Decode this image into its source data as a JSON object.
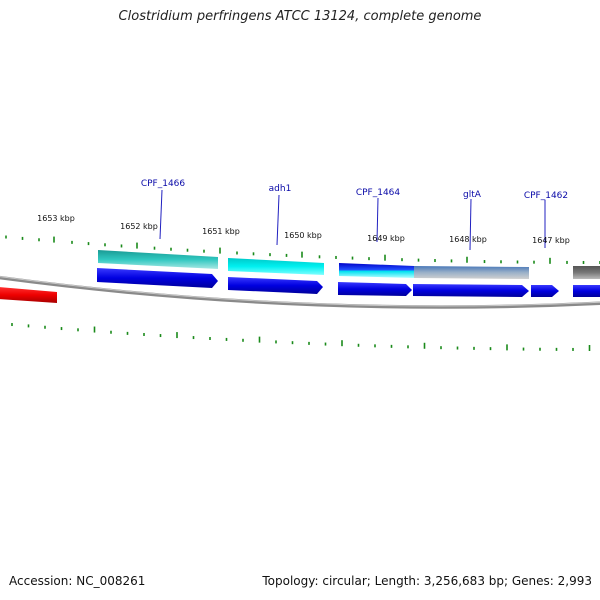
{
  "title": "Clostridium perfringens ATCC 13124, complete genome",
  "footer": {
    "accession": "Accession: NC_008261",
    "summary": "Topology: circular; Length: 3,256,683 bp; Genes: 2,993"
  },
  "axis": {
    "kbp_labels": [
      "1653 kbp",
      "1652 kbp",
      "1651 kbp",
      "1650 kbp",
      "1649 kbp",
      "1648 kbp",
      "1647 kbp"
    ]
  },
  "genes": [
    {
      "name": "CPF_1466"
    },
    {
      "name": "adh1"
    },
    {
      "name": "CPF_1464"
    },
    {
      "name": "gltA"
    },
    {
      "name": "CPF_1462"
    }
  ],
  "colors": {
    "backbone": "#8a8a8a",
    "gene_arrow": "#0000ee",
    "tick": "#1a8a1a",
    "label": "#0a0aa8",
    "red_feature": "#ee0000",
    "cyan_feature": "#00e5e5",
    "teal_feature": "#22b8b0",
    "gray_feature": "#707070"
  }
}
